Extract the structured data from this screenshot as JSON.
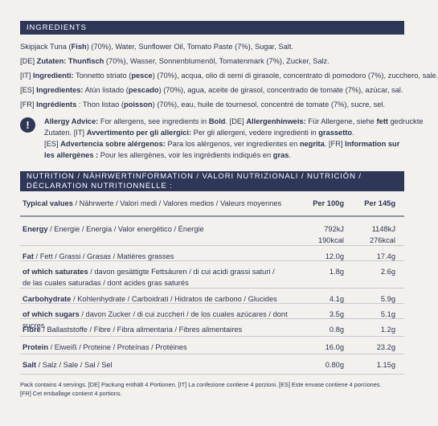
{
  "ingredients": {
    "header": "INGREDIENTS",
    "lines": [
      {
        "segments": [
          {
            "t": "Skipjack Tuna (",
            "b": false
          },
          {
            "t": "Fish",
            "b": true
          },
          {
            "t": ") (70%), Water, Sunflower Oil, Tomato Paste (7%), Sugar, Salt.",
            "b": false
          }
        ]
      },
      {
        "segments": [
          {
            "t": "[DE] ",
            "b": false
          },
          {
            "t": "Zutaten: Thunfisch",
            "b": true
          },
          {
            "t": " (70%), Wasser, Sonnenblumenöl, Tomatenmark (7%), Zucker, Salz.",
            "b": false
          }
        ]
      },
      {
        "segments": [
          {
            "t": "[IT] ",
            "b": false
          },
          {
            "t": "Ingredienti:",
            "b": true
          },
          {
            "t": " Tonnetto striato (",
            "b": false
          },
          {
            "t": "pesce",
            "b": true
          },
          {
            "t": ") (70%), acqua, olio di semi di girasole, concentrato di pomodoro (7%), zucchero, sale.",
            "b": false
          }
        ]
      },
      {
        "segments": [
          {
            "t": "[ES] ",
            "b": false
          },
          {
            "t": "Ingredientes:",
            "b": true
          },
          {
            "t": " Atún listado (",
            "b": false
          },
          {
            "t": "pescado",
            "b": true
          },
          {
            "t": ") (70%), agua, aceite de girasol, concentrado de tomate (7%), azúcar, sal.",
            "b": false
          }
        ]
      },
      {
        "segments": [
          {
            "t": "[FR] ",
            "b": false
          },
          {
            "t": "Ingrédients",
            "b": true
          },
          {
            "t": " : Thon listao (",
            "b": false
          },
          {
            "t": "poisson",
            "b": true
          },
          {
            "t": ") (70%), eau, huile de tournesol, concentré de tomate (7%), sucre, sel.",
            "b": false
          }
        ]
      }
    ]
  },
  "allergy": {
    "icon": "exclamation-icon",
    "lines": [
      {
        "segments": [
          {
            "t": "Allergy Advice:",
            "b": true
          },
          {
            "t": " For allergens, see ingredients in ",
            "b": false
          },
          {
            "t": "Bold",
            "b": true
          },
          {
            "t": ". [DE] ",
            "b": false
          },
          {
            "t": "Allergenhinweis:",
            "b": true
          },
          {
            "t": " Für Allergene, siehe ",
            "b": false
          },
          {
            "t": "fett",
            "b": true
          },
          {
            "t": " gedruckte",
            "b": false
          }
        ]
      },
      {
        "segments": [
          {
            "t": "Zutaten. [IT] ",
            "b": false
          },
          {
            "t": "Avvertimento per gli allergici:",
            "b": true
          },
          {
            "t": " Per gli allergeni, vedere ingredienti in ",
            "b": false
          },
          {
            "t": "grassetto",
            "b": true
          },
          {
            "t": ".",
            "b": false
          }
        ]
      },
      {
        "segments": [
          {
            "t": "[ES] ",
            "b": false
          },
          {
            "t": "Advertencia sobre alérgenos:",
            "b": true
          },
          {
            "t": " Para los alérgenos, ver ingredientes en ",
            "b": false
          },
          {
            "t": "negrita",
            "b": true
          },
          {
            "t": ". [FR] ",
            "b": false
          },
          {
            "t": "Information sur",
            "b": true
          }
        ]
      },
      {
        "segments": [
          {
            "t": "les allergènes :",
            "b": true
          },
          {
            "t": " Pour les allergènes, voir les ingrédients indiqués en ",
            "b": false
          },
          {
            "t": "gras",
            "b": true
          },
          {
            "t": ".",
            "b": false
          }
        ]
      }
    ]
  },
  "nutrition": {
    "header_line1": "NUTRITION / NÄHRWERTINFORMATION / VALORI NUTRIZIONALI / NUTRICIÓN /",
    "header_line2": "DÉCLARATION NUTRITIONNELLE :",
    "columns": {
      "label_bold": "Typical values",
      "label_rest": " / Nährwerte / Valori medi / Valores medios / Valeurs moyennes",
      "col1": "Per 100g",
      "col2": "Per 145g"
    },
    "rows": [
      {
        "bold": "Energy",
        "rest": " / Energie / Energia / Valor energético / Énergie",
        "v1": [
          "792kJ",
          "190kcal"
        ],
        "v2": [
          "1148kJ",
          "276kcal"
        ]
      },
      {
        "bold": "Fat",
        "rest": " / Fett / Grassi / Grasas / Matières grasses",
        "v1": [
          "12.0g"
        ],
        "v2": [
          "17.4g"
        ]
      },
      {
        "bold": "of which saturates",
        "rest": " / davon gesättigte Fettsäuren / di cui acidi grassi saturi /",
        "rest2": "de las cuales saturadas / dont acides gras saturés",
        "v1": [
          "1.8g"
        ],
        "v2": [
          "2.6g"
        ]
      },
      {
        "bold": "Carbohydrate",
        "rest": " / Kohlenhydrate / Carboidrati / Hidratos de carbono / Glucides",
        "v1": [
          "4.1g"
        ],
        "v2": [
          "5.9g"
        ]
      },
      {
        "bold": "of which sugars",
        "rest": " / davon Zucker / di cui zuccheri / de los cuales azúcares / dont sucres",
        "v1": [
          "3.5g"
        ],
        "v2": [
          "5.1g"
        ]
      },
      {
        "bold": "Fibre",
        "rest": " / Ballaststoffe / Fibre / Fibra alimentaria / Fibres alimentaires",
        "v1": [
          "0.8g"
        ],
        "v2": [
          "1.2g"
        ]
      },
      {
        "bold": "Protein",
        "rest": " / Eiweiß / Proteine / Proteínas / Protéines",
        "v1": [
          "16.0g"
        ],
        "v2": [
          "23.2g"
        ]
      },
      {
        "bold": "Salt",
        "rest": " / Salz / Sale / Sal / Sel",
        "v1": [
          "0.80g"
        ],
        "v2": [
          "1.15g"
        ]
      }
    ]
  },
  "footnote": {
    "line1": "Pack contains 4 servings. [DE] Packung enthält 4 Portionen. [IT] La confezione contiene 4 porzioni. [ES] Este envase contiene 4 porciones.",
    "line2": "[FR]  Cet emballage contient 4 portions."
  }
}
